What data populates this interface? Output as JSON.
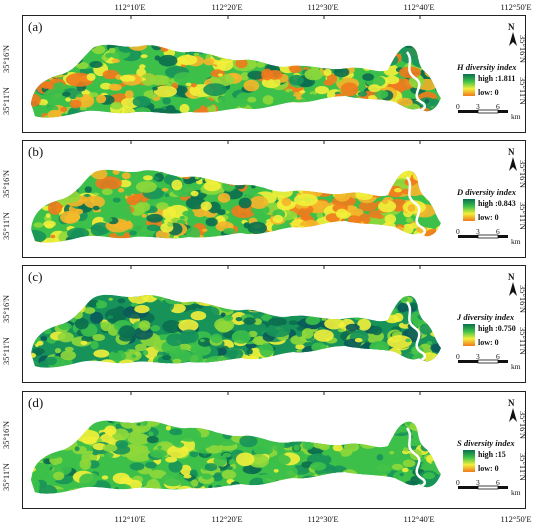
{
  "top_axis": [
    "112°10'E",
    "112°20'E",
    "112°30'E",
    "112°40'E",
    "112°50'E"
  ],
  "bottom_axis": [
    "112°10'E",
    "112°20'E",
    "112°30'E",
    "112°40'E",
    "112°50'E"
  ],
  "lat_labels": [
    "35°16'N",
    "35°11'N"
  ],
  "colors": {
    "high": "#0b6e4f",
    "mid_high": "#3cc04a",
    "mid": "#f2ef3a",
    "low": "#f07a1d"
  },
  "north_label": "N",
  "scale": {
    "ticks": [
      "0",
      "3",
      "6"
    ],
    "unit": "km"
  },
  "panels": [
    {
      "id": "a",
      "label": "(a)",
      "legend_title": "H diversity index",
      "high": "high :1.811",
      "low": "low: 0"
    },
    {
      "id": "b",
      "label": "(b)",
      "legend_title": "D diversity index",
      "high": "high :0.843",
      "low": "low: 0"
    },
    {
      "id": "c",
      "label": "(c)",
      "legend_title": "J diversity index",
      "high": "high :0.750",
      "low": "low: 0"
    },
    {
      "id": "d",
      "label": "(d)",
      "legend_title": "S diversity index",
      "high": "high :15",
      "low": "low: 0"
    }
  ]
}
